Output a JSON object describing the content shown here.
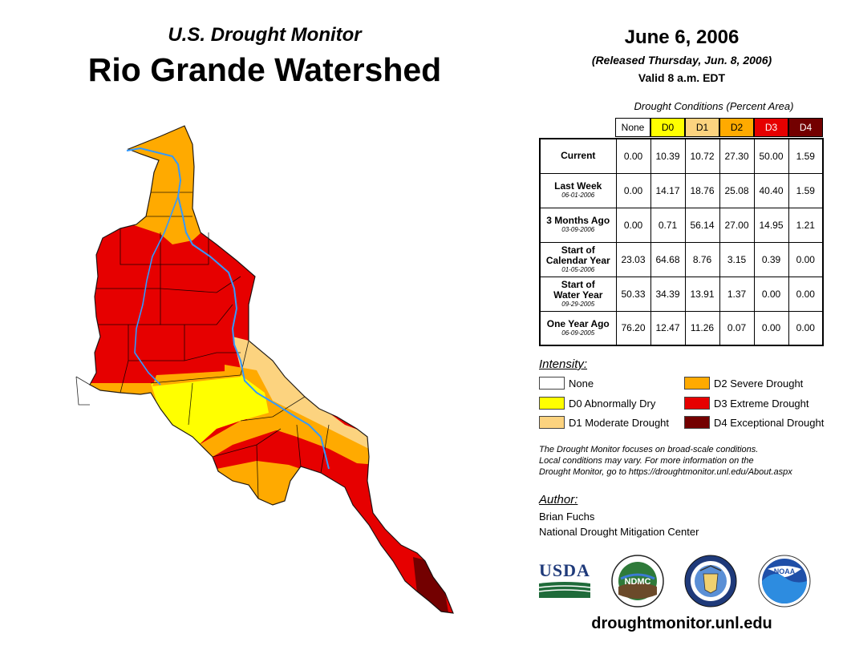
{
  "header": {
    "subtitle": "U.S. Drought Monitor",
    "title": "Rio Grande Watershed",
    "date": "June 6, 2006",
    "released": "(Released Thursday, Jun. 8, 2006)",
    "valid": "Valid 8 a.m. EDT"
  },
  "table": {
    "caption": "Drought Conditions (Percent Area)",
    "columns": [
      {
        "label": "None",
        "color": "#ffffff",
        "text_color": "#000000"
      },
      {
        "label": "D0",
        "color": "#ffff00",
        "text_color": "#000000"
      },
      {
        "label": "D1",
        "color": "#fcd37f",
        "text_color": "#000000"
      },
      {
        "label": "D2",
        "color": "#ffaa00",
        "text_color": "#000000"
      },
      {
        "label": "D3",
        "color": "#e60000",
        "text_color": "#ffffff"
      },
      {
        "label": "D4",
        "color": "#730000",
        "text_color": "#ffffff"
      }
    ],
    "rows": [
      {
        "label_lines": [
          "Current"
        ],
        "date": "",
        "values": [
          "0.00",
          "10.39",
          "10.72",
          "27.30",
          "50.00",
          "1.59"
        ]
      },
      {
        "label_lines": [
          "Last Week"
        ],
        "date": "06-01-2006",
        "values": [
          "0.00",
          "14.17",
          "18.76",
          "25.08",
          "40.40",
          "1.59"
        ]
      },
      {
        "label_lines": [
          "3 Months Ago"
        ],
        "date": "03-09-2006",
        "values": [
          "0.00",
          "0.71",
          "56.14",
          "27.00",
          "14.95",
          "1.21"
        ]
      },
      {
        "label_lines": [
          "Start of",
          "Calendar Year"
        ],
        "date": "01-05-2006",
        "values": [
          "23.03",
          "64.68",
          "8.76",
          "3.15",
          "0.39",
          "0.00"
        ]
      },
      {
        "label_lines": [
          "Start of",
          "Water Year"
        ],
        "date": "09-29-2005",
        "values": [
          "50.33",
          "34.39",
          "13.91",
          "1.37",
          "0.00",
          "0.00"
        ]
      },
      {
        "label_lines": [
          "One Year Ago"
        ],
        "date": "06-09-2005",
        "values": [
          "76.20",
          "12.47",
          "11.26",
          "0.07",
          "0.00",
          "0.00"
        ]
      }
    ]
  },
  "legend": {
    "title": "Intensity:",
    "items": [
      {
        "label": "None",
        "color": "#ffffff"
      },
      {
        "label": "D0 Abnormally Dry",
        "color": "#ffff00"
      },
      {
        "label": "D1 Moderate Drought",
        "color": "#fcd37f"
      },
      {
        "label": "D2 Severe Drought",
        "color": "#ffaa00"
      },
      {
        "label": "D3 Extreme Drought",
        "color": "#e60000"
      },
      {
        "label": "D4 Exceptional Drought",
        "color": "#730000"
      }
    ]
  },
  "note": {
    "line1": "The Drought Monitor focuses on broad-scale conditions.",
    "line2": "Local conditions may vary. For more information on the",
    "line3": "Drought Monitor, go to https://droughtmonitor.unl.edu/About.aspx"
  },
  "author": {
    "label": "Author:",
    "name": "Brian Fuchs",
    "org": "National Drought Mitigation Center"
  },
  "logos": {
    "usda": "USDA",
    "ndmc": "NDMC",
    "noaa": "NOAA",
    "doc_icon": "eagle-seal-icon"
  },
  "footer": {
    "url": "droughtmonitor.unl.edu"
  },
  "map": {
    "colors": {
      "none": "#ffffff",
      "d0": "#ffff00",
      "d1": "#fcd37f",
      "d2": "#ffaa00",
      "d3": "#e60000",
      "d4": "#730000",
      "river": "#3399ff"
    }
  }
}
